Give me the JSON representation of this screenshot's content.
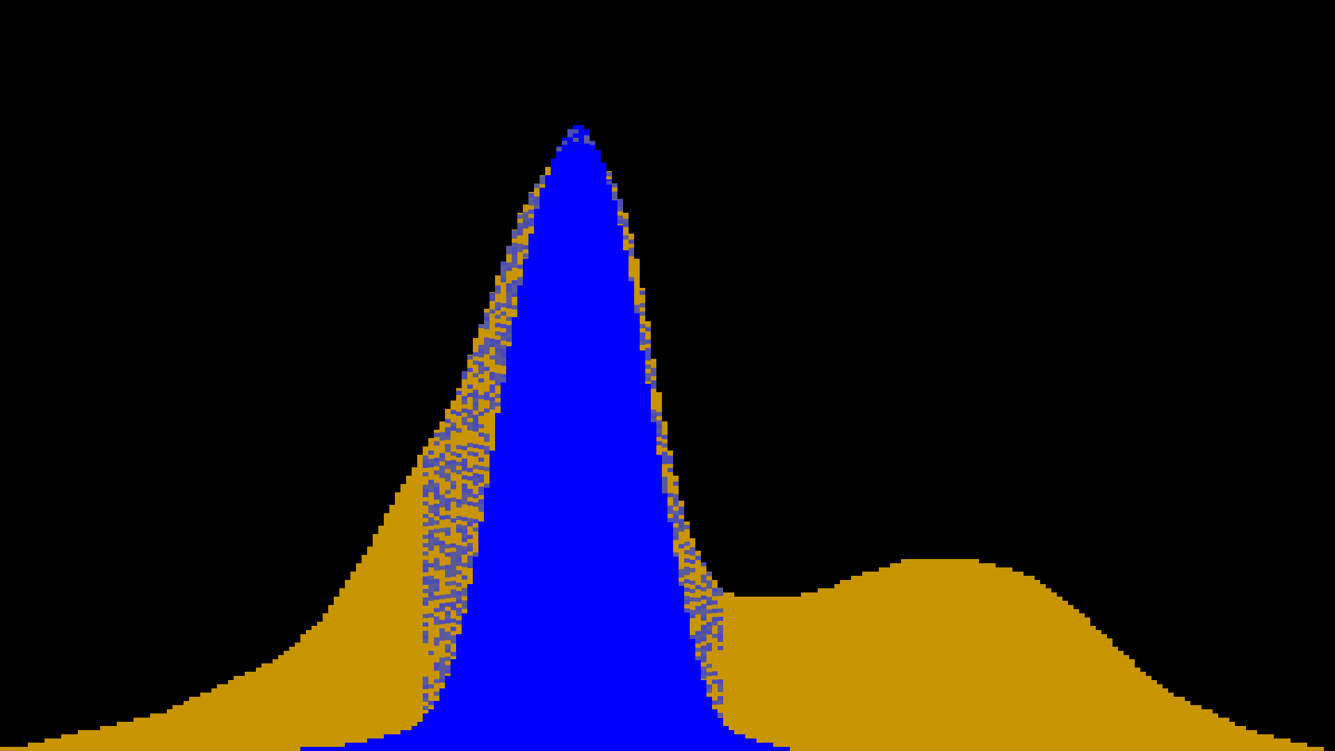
{
  "chart_data": {
    "type": "area",
    "title": "",
    "xlabel": "",
    "ylabel": "",
    "grid": false,
    "legend": "none",
    "background_color": "#000000",
    "xlim": [
      0,
      1
    ],
    "ylim": [
      0,
      1
    ],
    "series": [
      {
        "color": "#C89400",
        "x": [
          0.0,
          0.02,
          0.04,
          0.06,
          0.08,
          0.1,
          0.12,
          0.14,
          0.16,
          0.18,
          0.2,
          0.22,
          0.24,
          0.26,
          0.28,
          0.3,
          0.32,
          0.34,
          0.35,
          0.36,
          0.37,
          0.38,
          0.39,
          0.4,
          0.41,
          0.42,
          0.43,
          0.44,
          0.45,
          0.46,
          0.47,
          0.48,
          0.49,
          0.5,
          0.51,
          0.52,
          0.53,
          0.54,
          0.55,
          0.56,
          0.58,
          0.6,
          0.62,
          0.64,
          0.66,
          0.68,
          0.7,
          0.72,
          0.74,
          0.76,
          0.78,
          0.8,
          0.82,
          0.84,
          0.86,
          0.88,
          0.9,
          0.92,
          0.94,
          0.96,
          0.98,
          1.0
        ],
        "values": [
          0.01,
          0.01,
          0.02,
          0.03,
          0.04,
          0.05,
          0.06,
          0.08,
          0.1,
          0.12,
          0.14,
          0.17,
          0.21,
          0.27,
          0.34,
          0.42,
          0.49,
          0.56,
          0.62,
          0.68,
          0.74,
          0.8,
          0.86,
          0.9,
          0.93,
          0.96,
          0.98,
          0.97,
          0.95,
          0.91,
          0.85,
          0.76,
          0.62,
          0.5,
          0.4,
          0.33,
          0.29,
          0.26,
          0.25,
          0.25,
          0.25,
          0.25,
          0.26,
          0.28,
          0.29,
          0.31,
          0.31,
          0.31,
          0.3,
          0.29,
          0.27,
          0.24,
          0.2,
          0.16,
          0.12,
          0.09,
          0.07,
          0.05,
          0.03,
          0.02,
          0.01,
          0.0
        ]
      },
      {
        "color": "#0000FF",
        "x": [
          0.0,
          0.2,
          0.22,
          0.24,
          0.26,
          0.28,
          0.3,
          0.31,
          0.32,
          0.33,
          0.34,
          0.35,
          0.36,
          0.37,
          0.38,
          0.385,
          0.39,
          0.395,
          0.4,
          0.405,
          0.41,
          0.415,
          0.42,
          0.425,
          0.43,
          0.435,
          0.44,
          0.445,
          0.45,
          0.455,
          0.46,
          0.465,
          0.47,
          0.475,
          0.48,
          0.49,
          0.5,
          0.51,
          0.52,
          0.53,
          0.54,
          0.55,
          0.56,
          0.58,
          0.6,
          0.62,
          0.64,
          1.0
        ],
        "values": [
          0.0,
          0.0,
          0.0,
          0.01,
          0.01,
          0.02,
          0.03,
          0.04,
          0.06,
          0.09,
          0.15,
          0.24,
          0.36,
          0.5,
          0.63,
          0.69,
          0.75,
          0.8,
          0.85,
          0.89,
          0.92,
          0.95,
          0.97,
          0.99,
          1.0,
          1.0,
          0.99,
          0.97,
          0.95,
          0.92,
          0.88,
          0.84,
          0.79,
          0.73,
          0.66,
          0.52,
          0.39,
          0.27,
          0.17,
          0.09,
          0.05,
          0.03,
          0.02,
          0.01,
          0.0,
          0.0,
          0.0,
          0.0
        ]
      }
    ]
  }
}
